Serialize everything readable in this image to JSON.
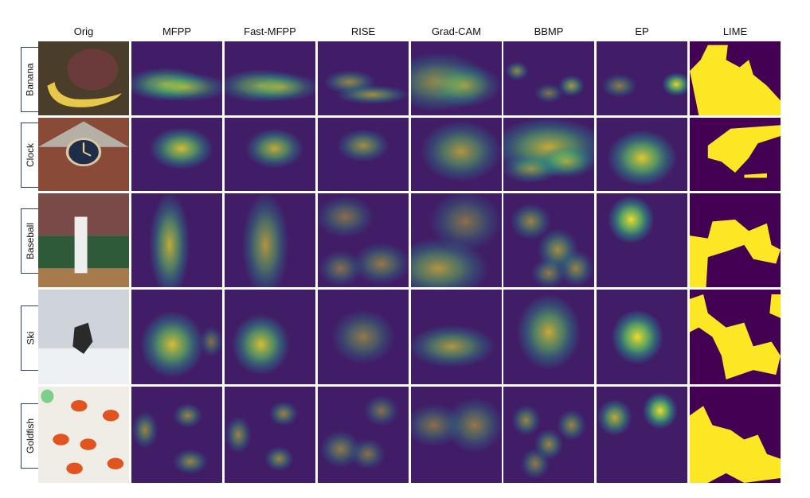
{
  "figure": {
    "columns": [
      {
        "label": "Orig"
      },
      {
        "label": "MFPP"
      },
      {
        "label": "Fast-MFPP"
      },
      {
        "label": "RISE"
      },
      {
        "label": "Grad-CAM"
      },
      {
        "label": "BBMP"
      },
      {
        "label": "EP"
      },
      {
        "label": "LIME"
      }
    ],
    "rows": [
      {
        "label": "Banana"
      },
      {
        "label": "Clock"
      },
      {
        "label": "Baseball"
      },
      {
        "label": "Ski"
      },
      {
        "label": "Goldfish"
      }
    ]
  },
  "colors": {
    "colormap": "viridis",
    "low": "#440154",
    "mid": "#21918c",
    "high": "#fde725",
    "label_border": "#2a3f7a"
  }
}
